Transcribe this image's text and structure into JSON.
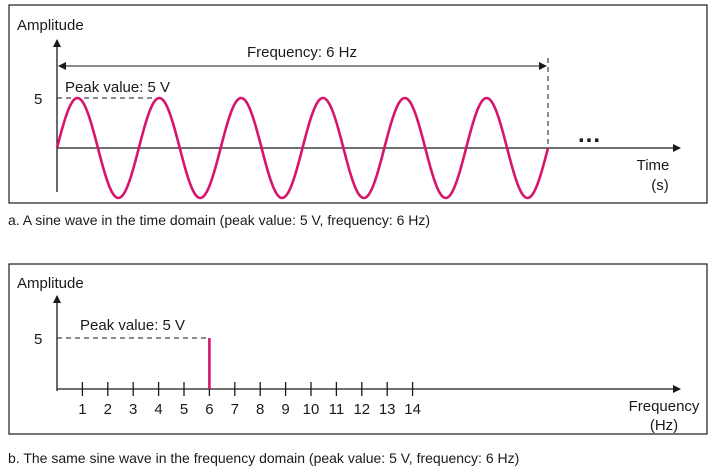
{
  "time_panel": {
    "y_axis_label": "Amplitude",
    "x_axis_label_line1": "Time",
    "x_axis_label_line2": "(s)",
    "frequency_annotation": "Frequency: 6 Hz",
    "peak_annotation": "Peak value: 5 V",
    "peak_tick_label": "5",
    "continuation": "...",
    "caption": "a. A sine wave in the time domain (peak value: 5 V, frequency: 6 Hz)"
  },
  "frequency_panel": {
    "y_axis_label": "Amplitude",
    "x_axis_label_line1": "Frequency",
    "x_axis_label_line2": "(Hz)",
    "peak_annotation": "Peak value: 5 V",
    "peak_tick_label": "5",
    "caption": "b. The same sine wave in the frequency domain (peak value: 5 V, frequency: 6 Hz)"
  },
  "colors": {
    "signal": "#d6156b",
    "axis": "#1a1a1a",
    "frame": "#1a1a1a"
  },
  "chart_data": [
    {
      "type": "line",
      "signal": "sine",
      "peak_value": 5,
      "frequency": 6,
      "cycles_shown": 6,
      "ylabel": "Amplitude",
      "xlabel": "Time (s)"
    },
    {
      "type": "bar",
      "x": [
        1,
        2,
        3,
        4,
        5,
        6,
        7,
        8,
        9,
        10,
        11,
        12,
        13,
        14
      ],
      "tick_labels": [
        "1",
        "2",
        "3",
        "4",
        "5",
        "6",
        "7",
        "8",
        "9",
        "10",
        "11",
        "12",
        "13",
        "14"
      ],
      "spectral_lines": [
        {
          "frequency": 6,
          "amplitude": 5
        }
      ],
      "ylabel": "Amplitude",
      "xlabel": "Frequency (Hz)"
    }
  ]
}
